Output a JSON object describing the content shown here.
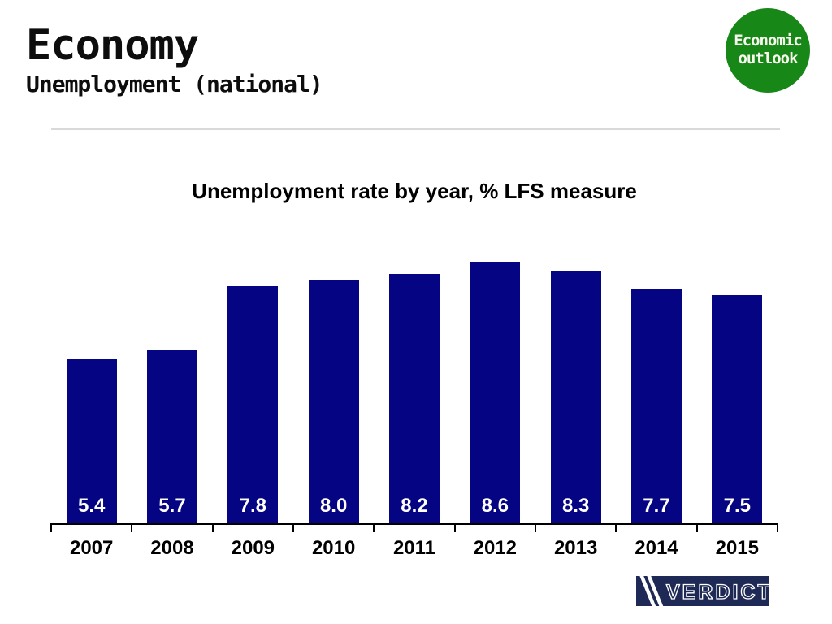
{
  "header": {
    "title": "Economy",
    "subtitle": "Unemployment (national)"
  },
  "badge": {
    "line1": "Economic",
    "line2": "outlook",
    "color": "#178717",
    "text_color": "#f7f7ee"
  },
  "chart_data": {
    "type": "bar",
    "title": "Unemployment rate by year, % LFS measure",
    "categories": [
      "2007",
      "2008",
      "2009",
      "2010",
      "2011",
      "2012",
      "2013",
      "2014",
      "2015"
    ],
    "values": [
      5.4,
      5.7,
      7.8,
      8.0,
      8.2,
      8.6,
      8.3,
      7.7,
      7.5
    ],
    "value_labels": [
      "5.4",
      "5.7",
      "7.8",
      "8.0",
      "8.2",
      "8.6",
      "8.3",
      "7.7",
      "7.5"
    ],
    "xlabel": "",
    "ylabel": "",
    "ylim": [
      0,
      9.2
    ],
    "grid": false,
    "legend_position": "none",
    "value_label_position": "inside-base",
    "bar_color": "#050583",
    "value_label_color": "#ffffff",
    "axis_color": "#000000"
  },
  "logo": {
    "text": "VERDICT",
    "background": "#1e2a55",
    "stroke_color": "#ffffff"
  }
}
